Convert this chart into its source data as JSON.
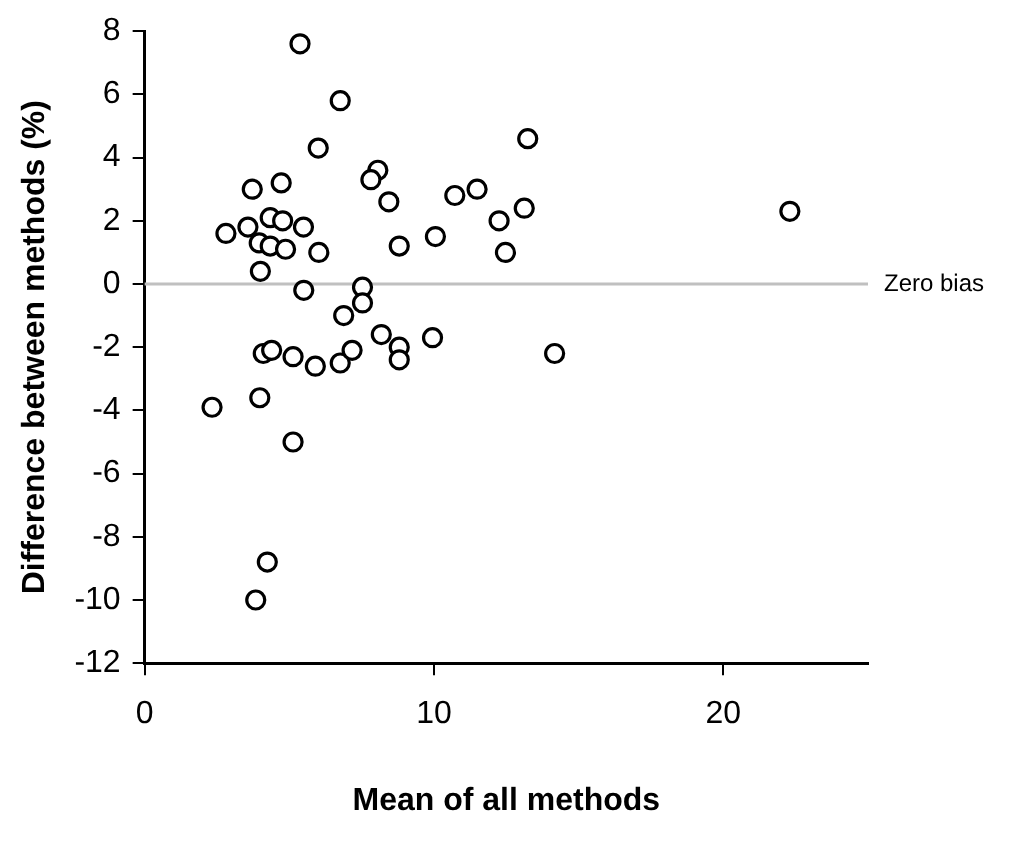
{
  "chart_data": {
    "type": "scatter",
    "xlabel": "Mean of all methods",
    "ylabel": "Difference between methods (%)",
    "xlim": [
      0,
      25
    ],
    "xticks": [
      0,
      10,
      20
    ],
    "ylim": [
      -12,
      8
    ],
    "yticks": [
      -12,
      -10,
      -8,
      -6,
      -4,
      -2,
      0,
      2,
      4,
      6,
      8
    ],
    "grid": false,
    "legend": false,
    "marker": "circle",
    "ref_lines": [
      {
        "axis": "y",
        "value": 0,
        "label": "Zero bias",
        "color": "#c0c0c0"
      }
    ],
    "series": [
      {
        "color": "#000000",
        "x": [
          5.37,
          6.76,
          6.0,
          8.06,
          7.82,
          8.44,
          3.72,
          4.72,
          2.81,
          3.57,
          4.34,
          4.77,
          5.49,
          3.96,
          4.34,
          4.87,
          6.02,
          8.8,
          10.05,
          4.0,
          5.5,
          7.53,
          7.53,
          6.88,
          8.18,
          8.8,
          8.8,
          9.95,
          4.1,
          4.39,
          5.13,
          5.9,
          6.76,
          7.17,
          2.33,
          3.98,
          5.13,
          4.24,
          3.84,
          10.72,
          11.49,
          13.24,
          12.25,
          13.12,
          12.47,
          22.3,
          14.17
        ],
        "values": [
          7.6,
          5.8,
          4.3,
          3.6,
          3.3,
          2.6,
          3.0,
          3.2,
          1.6,
          1.8,
          2.1,
          2.0,
          1.8,
          1.3,
          1.2,
          1.1,
          1.0,
          1.2,
          1.5,
          0.4,
          -0.2,
          -0.1,
          -0.6,
          -1.0,
          -1.6,
          -2.0,
          -2.4,
          -1.7,
          -2.2,
          -2.1,
          -2.3,
          -2.6,
          -2.5,
          -2.1,
          -3.9,
          -3.6,
          -5.0,
          -8.8,
          -10.0,
          2.8,
          3.0,
          4.6,
          2.0,
          2.4,
          1.0,
          2.3,
          -2.2
        ]
      }
    ]
  }
}
